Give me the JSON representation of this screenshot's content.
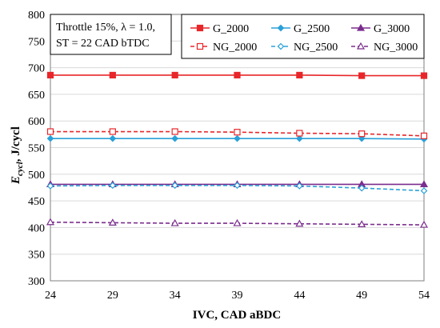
{
  "chart_data": {
    "type": "line",
    "xlabel": "IVC, CAD aBDC",
    "ylabel_main": "E",
    "ylabel_sub": "cycl",
    "ylabel_rest": ", J/cycl",
    "x": [
      24,
      29,
      34,
      39,
      44,
      49,
      54
    ],
    "xlim": [
      24,
      54
    ],
    "ylim": [
      300,
      800
    ],
    "xticks": [
      "24",
      "29",
      "34",
      "39",
      "44",
      "49",
      "54"
    ],
    "yticks": [
      "300",
      "350",
      "400",
      "450",
      "500",
      "550",
      "600",
      "650",
      "700",
      "750",
      "800"
    ],
    "grid": "horizontal",
    "legend_position": "top-right",
    "annotation": {
      "line1": "Throttle 15%, λ = 1.0,",
      "line2": "ST = 22 CAD bTDC"
    },
    "series": [
      {
        "name": "G_2000",
        "values": [
          686,
          686,
          686,
          686,
          686,
          685,
          685
        ],
        "color": "#e8262a",
        "dash": false,
        "marker": "square"
      },
      {
        "name": "G_2500",
        "values": [
          567,
          567,
          567,
          567,
          567,
          567,
          566
        ],
        "color": "#2aa0d8",
        "dash": false,
        "marker": "diamond"
      },
      {
        "name": "G_3000",
        "values": [
          481,
          481,
          481,
          481,
          481,
          481,
          481
        ],
        "color": "#7b2d8e",
        "dash": false,
        "marker": "triangle"
      },
      {
        "name": "NG_2000",
        "values": [
          580,
          580,
          580,
          579,
          577,
          576,
          572
        ],
        "color": "#e8262a",
        "dash": true,
        "marker": "square-open"
      },
      {
        "name": "NG_2500",
        "values": [
          478,
          479,
          479,
          479,
          478,
          474,
          469
        ],
        "color": "#2aa0d8",
        "dash": true,
        "marker": "diamond-open"
      },
      {
        "name": "NG_3000",
        "values": [
          410,
          409,
          408,
          408,
          407,
          406,
          405
        ],
        "color": "#7b2d8e",
        "dash": true,
        "marker": "triangle-open"
      }
    ]
  }
}
